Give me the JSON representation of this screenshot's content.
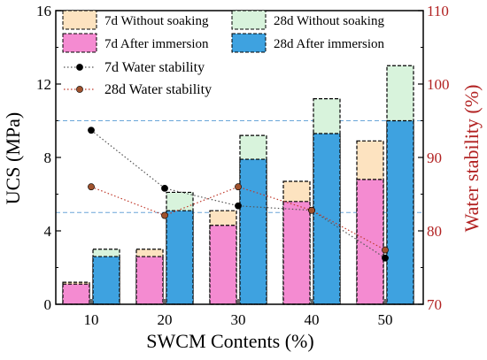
{
  "chart_data": {
    "type": "bar",
    "xlabel": "SWCM Contents (%)",
    "ylabel": "UCS (MPa)",
    "ylabel_right": "Water stability (%)",
    "ylim": [
      0,
      16
    ],
    "ylim_right": [
      70,
      110
    ],
    "y_ticks": [
      "0",
      "4",
      "8",
      "12",
      "16"
    ],
    "y_ticks_right": [
      "70",
      "80",
      "90",
      "100",
      "110"
    ],
    "categories": [
      "10",
      "20",
      "30",
      "40",
      "50"
    ],
    "reference_lines": [
      5,
      10
    ],
    "bar_series": [
      {
        "name": "7d Without soaking",
        "group": "7d",
        "layer": "back",
        "color": "#fde3c0",
        "values": [
          1.2,
          3.0,
          5.1,
          6.7,
          8.9
        ]
      },
      {
        "name": "28d Without soaking",
        "group": "28d",
        "layer": "back",
        "color": "#d8f3dc",
        "values": [
          3.0,
          6.1,
          9.2,
          11.2,
          13.0
        ]
      },
      {
        "name": "7d  After  immersion",
        "group": "7d",
        "layer": "front",
        "color": "#f48bd1",
        "values": [
          1.1,
          2.6,
          4.3,
          5.6,
          6.8
        ]
      },
      {
        "name": "28d  After  immersion",
        "group": "28d",
        "layer": "front",
        "color": "#3ea2e0",
        "values": [
          2.6,
          5.1,
          7.9,
          9.3,
          10.0
        ]
      }
    ],
    "line_series": [
      {
        "name": "7d Water stability",
        "color": "#000000",
        "line_color": "#555555",
        "values": [
          93.7,
          85.8,
          83.4,
          82.8,
          76.3
        ]
      },
      {
        "name": "28d Water stability",
        "color": "#a0522d",
        "line_color": "#c0392b",
        "values": [
          86.0,
          82.1,
          86.0,
          82.8,
          77.4
        ]
      }
    ],
    "colors": {
      "right_axis": "#b22222",
      "reference_line": "#6aa6d8"
    }
  }
}
